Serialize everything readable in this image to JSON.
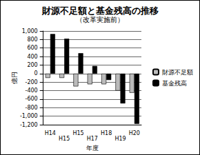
{
  "chart_data": {
    "type": "bar",
    "title": "財源不足額と基金残高の推移",
    "subtitle": "（改革実施前）",
    "x_label": "年度",
    "y_label": "億円",
    "categories": [
      "H14",
      "H15",
      "H15",
      "H17",
      "H18",
      "H19",
      "H20"
    ],
    "series": [
      {
        "name": "財源不足額",
        "color": "#bbbbbb",
        "values": [
          -100,
          -100,
          -300,
          -250,
          -250,
          -400,
          -450
        ]
      },
      {
        "name": "基金残高",
        "color": "#000000",
        "values": [
          930,
          820,
          480,
          180,
          -150,
          -700,
          -1180
        ]
      }
    ],
    "ylim": [
      -1200,
      1000
    ],
    "yticks": [
      -1200,
      -1000,
      -800,
      -600,
      -400,
      -200,
      0,
      200,
      400,
      600,
      800,
      1000
    ],
    "grid": true,
    "legend": "right"
  }
}
